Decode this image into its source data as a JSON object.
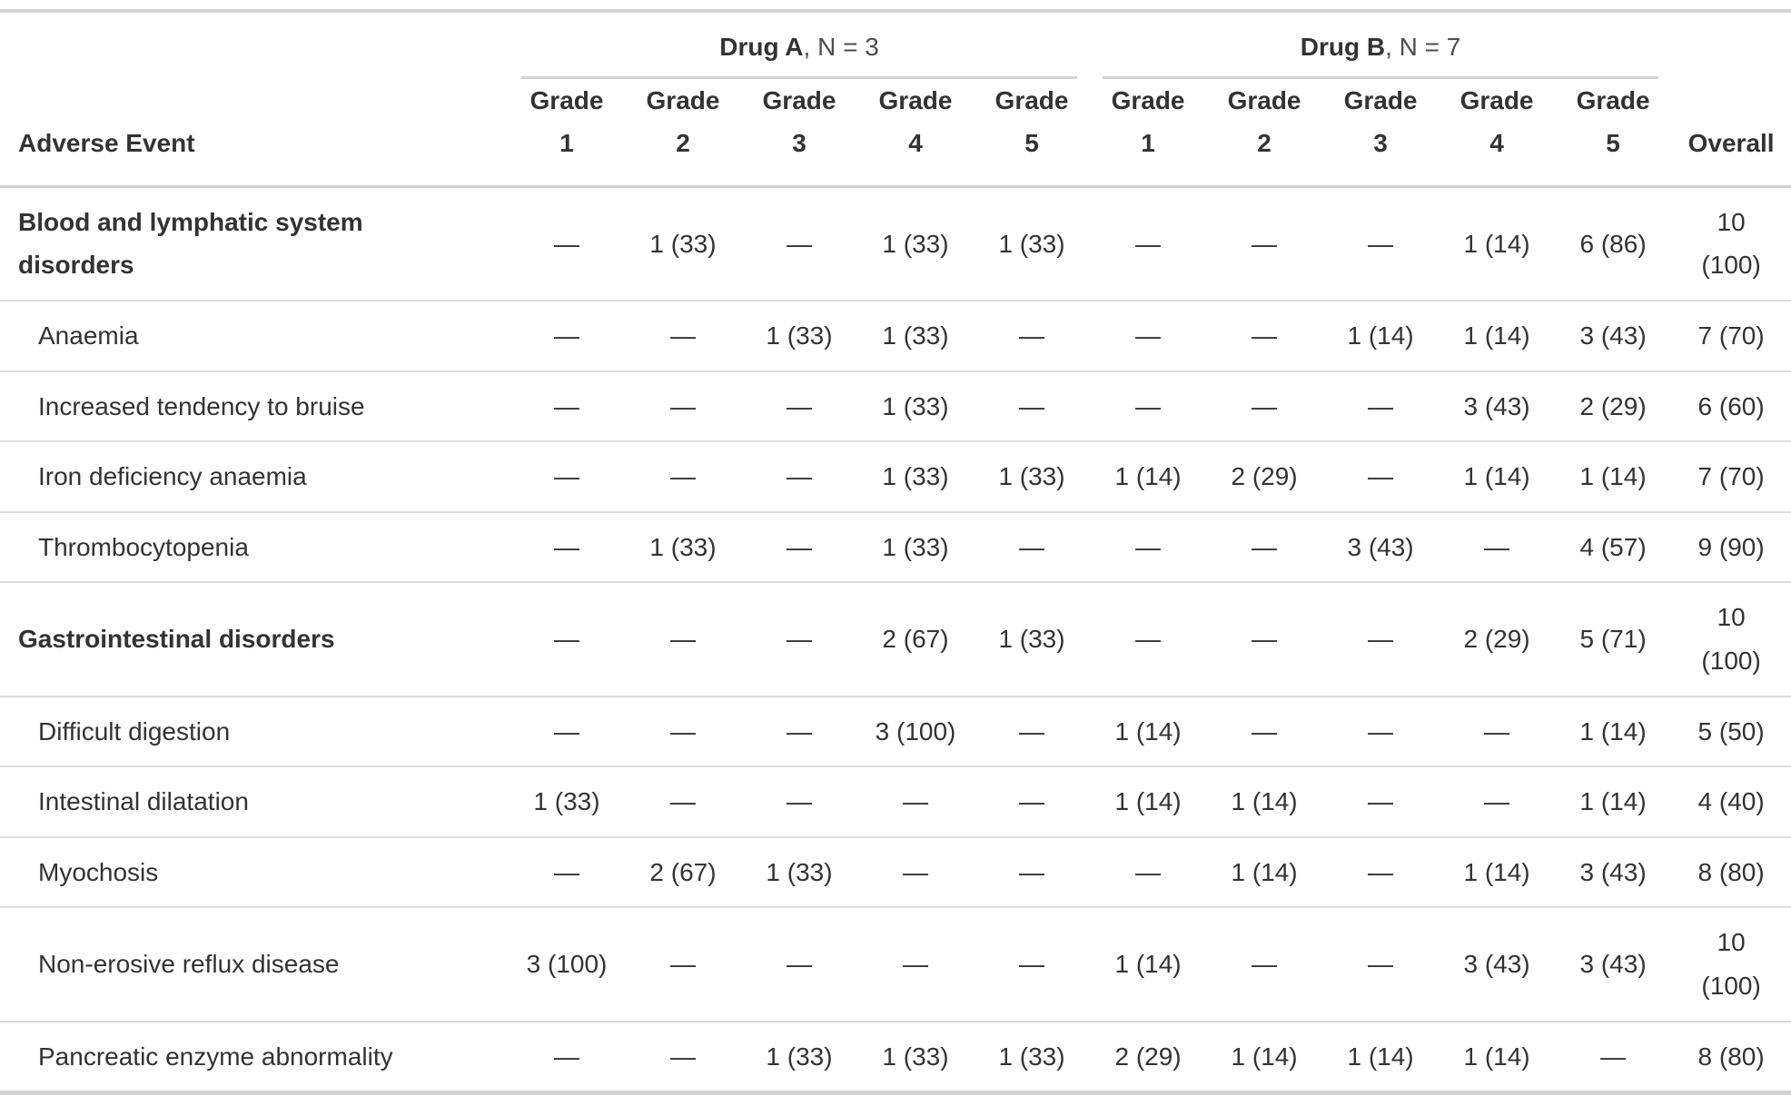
{
  "table": {
    "columns": {
      "adverse_event": "Adverse Event",
      "grade_word": "Grade",
      "grade_numbers": [
        "1",
        "2",
        "3",
        "4",
        "5"
      ],
      "overall": "Overall"
    },
    "spanners": [
      {
        "drug": "Drug A",
        "n_suffix": ", N = 3"
      },
      {
        "drug": "Drug B",
        "n_suffix": ", N = 7"
      }
    ],
    "rows": [
      {
        "label": "Blood and lymphatic system disorders",
        "section": true,
        "drug_a": [
          "—",
          "1 (33)",
          "—",
          "1 (33)",
          "1 (33)"
        ],
        "drug_b": [
          "—",
          "—",
          "—",
          "1 (14)",
          "6 (86)"
        ],
        "overall": "10 (100)"
      },
      {
        "label": "Anaemia",
        "section": false,
        "drug_a": [
          "—",
          "—",
          "1 (33)",
          "1 (33)",
          "—"
        ],
        "drug_b": [
          "—",
          "—",
          "1 (14)",
          "1 (14)",
          "3 (43)"
        ],
        "overall": "7 (70)"
      },
      {
        "label": "Increased tendency to bruise",
        "section": false,
        "drug_a": [
          "—",
          "—",
          "—",
          "1 (33)",
          "—"
        ],
        "drug_b": [
          "—",
          "—",
          "—",
          "3 (43)",
          "2 (29)"
        ],
        "overall": "6 (60)"
      },
      {
        "label": "Iron deficiency anaemia",
        "section": false,
        "drug_a": [
          "—",
          "—",
          "—",
          "1 (33)",
          "1 (33)"
        ],
        "drug_b": [
          "1 (14)",
          "2 (29)",
          "—",
          "1 (14)",
          "1 (14)"
        ],
        "overall": "7 (70)"
      },
      {
        "label": "Thrombocytopenia",
        "section": false,
        "drug_a": [
          "—",
          "1 (33)",
          "—",
          "1 (33)",
          "—"
        ],
        "drug_b": [
          "—",
          "—",
          "3 (43)",
          "—",
          "4 (57)"
        ],
        "overall": "9 (90)"
      },
      {
        "label": "Gastrointestinal disorders",
        "section": true,
        "drug_a": [
          "—",
          "—",
          "—",
          "2 (67)",
          "1 (33)"
        ],
        "drug_b": [
          "—",
          "—",
          "—",
          "2 (29)",
          "5 (71)"
        ],
        "overall": "10 (100)"
      },
      {
        "label": "Difficult digestion",
        "section": false,
        "drug_a": [
          "—",
          "—",
          "—",
          "3 (100)",
          "—"
        ],
        "drug_b": [
          "1 (14)",
          "—",
          "—",
          "—",
          "1 (14)"
        ],
        "overall": "5 (50)"
      },
      {
        "label": "Intestinal dilatation",
        "section": false,
        "drug_a": [
          "1 (33)",
          "—",
          "—",
          "—",
          "—"
        ],
        "drug_b": [
          "1 (14)",
          "1 (14)",
          "—",
          "—",
          "1 (14)"
        ],
        "overall": "4 (40)"
      },
      {
        "label": "Myochosis",
        "section": false,
        "drug_a": [
          "—",
          "2 (67)",
          "1 (33)",
          "—",
          "—"
        ],
        "drug_b": [
          "—",
          "1 (14)",
          "—",
          "1 (14)",
          "3 (43)"
        ],
        "overall": "8 (80)"
      },
      {
        "label": "Non-erosive reflux disease",
        "section": false,
        "drug_a": [
          "3 (100)",
          "—",
          "—",
          "—",
          "—"
        ],
        "drug_b": [
          "1 (14)",
          "—",
          "—",
          "3 (43)",
          "3 (43)"
        ],
        "overall": "10 (100)"
      },
      {
        "label": "Pancreatic enzyme abnormality",
        "section": false,
        "drug_a": [
          "—",
          "—",
          "1 (33)",
          "1 (33)",
          "1 (33)"
        ],
        "drug_b": [
          "2 (29)",
          "1 (14)",
          "1 (14)",
          "1 (14)",
          "—"
        ],
        "overall": "8 (80)"
      }
    ],
    "colors": {
      "text": "#333333",
      "muted_text": "#4d4d4d",
      "border": "#d3d3d3",
      "row_border": "#dcdcdc"
    }
  }
}
